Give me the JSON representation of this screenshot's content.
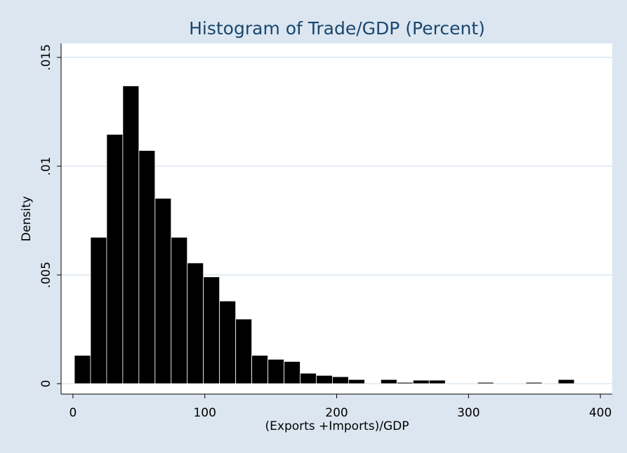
{
  "chart_data": {
    "type": "histogram",
    "title": "Histogram of Trade/GDP (Percent)",
    "x_label": "(Exports +Imports)/GDP",
    "y_label": "Density",
    "bins": [
      1.1,
      13.33,
      25.56,
      37.79,
      50.02,
      62.25,
      74.48,
      86.71,
      98.94,
      111.17,
      123.4,
      135.63,
      147.86,
      160.09,
      172.32,
      184.55,
      196.78,
      209.01,
      221.24,
      233.47,
      245.7,
      257.93,
      270.16,
      282.39,
      294.62,
      306.85,
      319.08,
      331.31,
      343.54,
      355.77,
      368.0,
      380.23
    ],
    "values": [
      0.0013,
      0.00673,
      0.01146,
      0.01369,
      0.01072,
      0.00852,
      0.00673,
      0.00555,
      0.00491,
      0.0038,
      0.00297,
      0.0013,
      0.00112,
      0.00102,
      0.00048,
      0.00038,
      0.00032,
      0.00019,
      0,
      0.00019,
      6e-05,
      0.00016,
      0.00016,
      0,
      0,
      6e-05,
      0,
      0,
      6e-05,
      0,
      0.00019
    ],
    "color": "#000000",
    "xlim": [
      -9,
      409
    ],
    "xticks": [
      0,
      100,
      200,
      300,
      400
    ],
    "ylim": [
      -0.00048,
      0.01564
    ],
    "yticks": [
      0,
      {
        "value": 0.005,
        "label": ".005"
      },
      {
        "value": 0.01,
        "label": ".01"
      },
      {
        "value": 0.015,
        "label": ".015"
      }
    ],
    "grid": true
  }
}
